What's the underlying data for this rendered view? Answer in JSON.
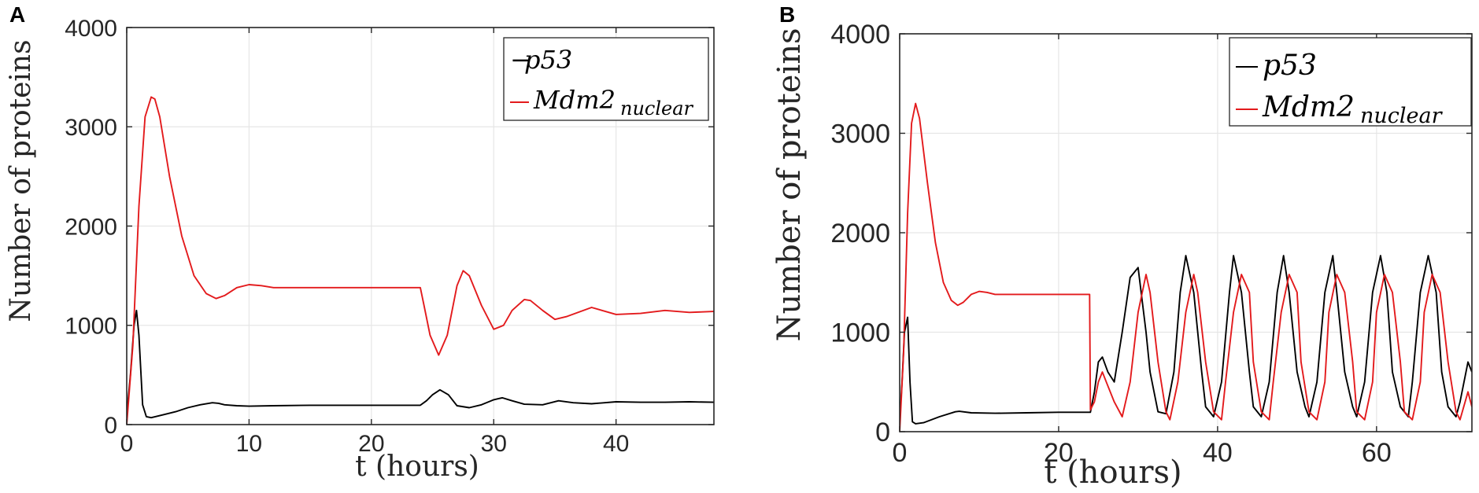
{
  "panels": {
    "A": {
      "letter": "A",
      "xlabel": "t (hours)",
      "ylabel": "Number of proteins",
      "legend": {
        "p53": "p53",
        "mdm2": "Mdm2",
        "mdm2_sub": "nuclear",
        "p53_prefix": "−"
      }
    },
    "B": {
      "letter": "B",
      "xlabel": "t (hours)",
      "ylabel": "Number of proteins",
      "legend": {
        "p53": "p53",
        "mdm2": "Mdm2",
        "mdm2_sub": "nuclear",
        "p53_prefix": ""
      }
    }
  },
  "chart_data": [
    {
      "panel": "A",
      "type": "line",
      "xlabel": "t (hours)",
      "ylabel": "Number of proteins",
      "xlim": [
        0,
        48
      ],
      "ylim": [
        0,
        4000
      ],
      "xticks": [
        0,
        10,
        20,
        30,
        40
      ],
      "yticks": [
        0,
        1000,
        2000,
        3000,
        4000
      ],
      "grid": true,
      "legend_position": "top-right",
      "series": [
        {
          "name": "p53",
          "color": "#000000",
          "x": [
            0,
            0.3,
            0.6,
            0.8,
            1.0,
            1.3,
            1.6,
            2,
            3,
            4,
            5,
            6,
            7,
            7.5,
            8,
            9,
            10,
            12,
            15,
            20,
            24,
            24.5,
            25,
            25.6,
            26.3,
            27,
            28,
            29,
            30,
            30.7,
            31.5,
            32.5,
            34,
            35.3,
            36.5,
            38,
            40,
            42,
            44,
            46,
            48
          ],
          "y": [
            100,
            500,
            1000,
            1150,
            900,
            200,
            80,
            70,
            100,
            130,
            170,
            200,
            220,
            215,
            200,
            190,
            185,
            190,
            195,
            195,
            195,
            240,
            300,
            350,
            300,
            190,
            170,
            200,
            250,
            270,
            240,
            205,
            200,
            240,
            220,
            210,
            230,
            225,
            225,
            230,
            225
          ]
        },
        {
          "name": "Mdm2 nuclear",
          "color": "#e31a1c",
          "x": [
            0,
            0.5,
            1,
            1.5,
            2,
            2.3,
            2.7,
            3.5,
            4.5,
            5.5,
            6.5,
            7.3,
            8,
            9,
            10,
            11,
            12,
            14,
            17,
            20,
            24,
            24.3,
            24.8,
            25.5,
            26.2,
            27,
            27.5,
            28,
            29,
            30,
            30.8,
            31.5,
            32.5,
            33,
            34,
            35,
            36,
            38,
            40,
            42,
            44,
            46,
            48
          ],
          "y": [
            0,
            800,
            2200,
            3100,
            3300,
            3280,
            3100,
            2500,
            1900,
            1500,
            1320,
            1270,
            1300,
            1380,
            1410,
            1400,
            1380,
            1380,
            1380,
            1380,
            1380,
            1200,
            900,
            700,
            900,
            1400,
            1550,
            1500,
            1200,
            960,
            1000,
            1150,
            1260,
            1250,
            1150,
            1060,
            1090,
            1180,
            1110,
            1120,
            1150,
            1130,
            1140
          ]
        }
      ]
    },
    {
      "panel": "B",
      "type": "line",
      "xlabel": "t (hours)",
      "ylabel": "Number of proteins",
      "xlim": [
        0,
        72
      ],
      "ylim": [
        0,
        4000
      ],
      "xticks": [
        0,
        20,
        40,
        60
      ],
      "yticks": [
        0,
        1000,
        2000,
        3000,
        4000
      ],
      "grid": true,
      "legend_position": "top-right",
      "series": [
        {
          "name": "p53",
          "color": "#000000",
          "x": [
            0,
            0.3,
            0.6,
            1.0,
            1.3,
            1.6,
            2,
            3,
            5,
            7,
            7.5,
            9,
            12,
            16,
            20,
            24,
            24.5,
            25,
            25.5,
            26.2,
            27,
            28,
            29,
            30,
            31,
            31.5,
            32.5,
            33.5,
            34.5,
            35.3,
            36,
            37,
            38,
            38.5,
            39.5,
            40.5,
            41.5,
            42,
            43,
            44,
            44.5,
            45.5,
            46.5,
            47.5,
            48.3,
            49,
            50,
            51,
            51.5,
            52.5,
            53.5,
            54.5,
            55,
            56,
            57,
            57.5,
            58.5,
            59.5,
            60.5,
            61.3,
            62,
            63,
            64,
            64.5,
            65.5,
            66.5,
            67.5,
            68.2,
            69,
            70,
            70.5,
            71.5,
            72
          ],
          "y": [
            100,
            500,
            1000,
            1150,
            500,
            100,
            80,
            90,
            150,
            200,
            205,
            190,
            185,
            190,
            195,
            195,
            400,
            700,
            750,
            600,
            500,
            1000,
            1550,
            1650,
            1000,
            600,
            200,
            180,
            600,
            1400,
            1770,
            1400,
            600,
            250,
            150,
            500,
            1400,
            1770,
            1400,
            600,
            250,
            150,
            500,
            1400,
            1770,
            1400,
            600,
            250,
            150,
            500,
            1400,
            1770,
            1400,
            600,
            250,
            150,
            500,
            1400,
            1770,
            1400,
            600,
            250,
            150,
            500,
            1400,
            1770,
            1400,
            600,
            250,
            150,
            300,
            700,
            600
          ]
        },
        {
          "name": "Mdm2 nuclear",
          "color": "#e31a1c",
          "x": [
            0,
            0.5,
            1,
            1.5,
            2,
            2.5,
            3.5,
            4.5,
            5.5,
            6.5,
            7.3,
            8,
            9,
            10,
            11,
            12,
            14,
            17,
            20,
            23.9,
            24,
            24.5,
            25,
            25.5,
            26,
            27,
            28,
            29,
            30,
            31,
            31.5,
            32.5,
            33.5,
            34,
            35,
            36,
            37,
            37.5,
            38.5,
            39.5,
            40.5,
            41,
            42,
            43,
            44,
            44.5,
            45.5,
            46.5,
            47,
            48,
            49,
            50,
            50.5,
            51.5,
            52.5,
            53.5,
            54,
            55,
            56,
            57,
            57.5,
            58.5,
            59.5,
            60,
            61,
            62,
            63,
            63.5,
            64.5,
            65.5,
            66,
            67,
            68,
            69,
            70,
            70.5,
            71.5,
            72
          ],
          "y": [
            0,
            800,
            2200,
            3100,
            3300,
            3150,
            2500,
            1900,
            1500,
            1320,
            1270,
            1300,
            1380,
            1410,
            1400,
            1380,
            1380,
            1380,
            1380,
            1380,
            220,
            300,
            500,
            600,
            500,
            300,
            150,
            500,
            1200,
            1580,
            1400,
            700,
            200,
            120,
            500,
            1200,
            1580,
            1400,
            700,
            200,
            120,
            500,
            1200,
            1580,
            1400,
            700,
            200,
            120,
            500,
            1200,
            1580,
            1400,
            700,
            200,
            120,
            500,
            1200,
            1580,
            1400,
            700,
            200,
            120,
            500,
            1200,
            1580,
            1400,
            700,
            200,
            120,
            500,
            1200,
            1580,
            1400,
            700,
            200,
            120,
            400,
            250
          ]
        }
      ]
    }
  ]
}
